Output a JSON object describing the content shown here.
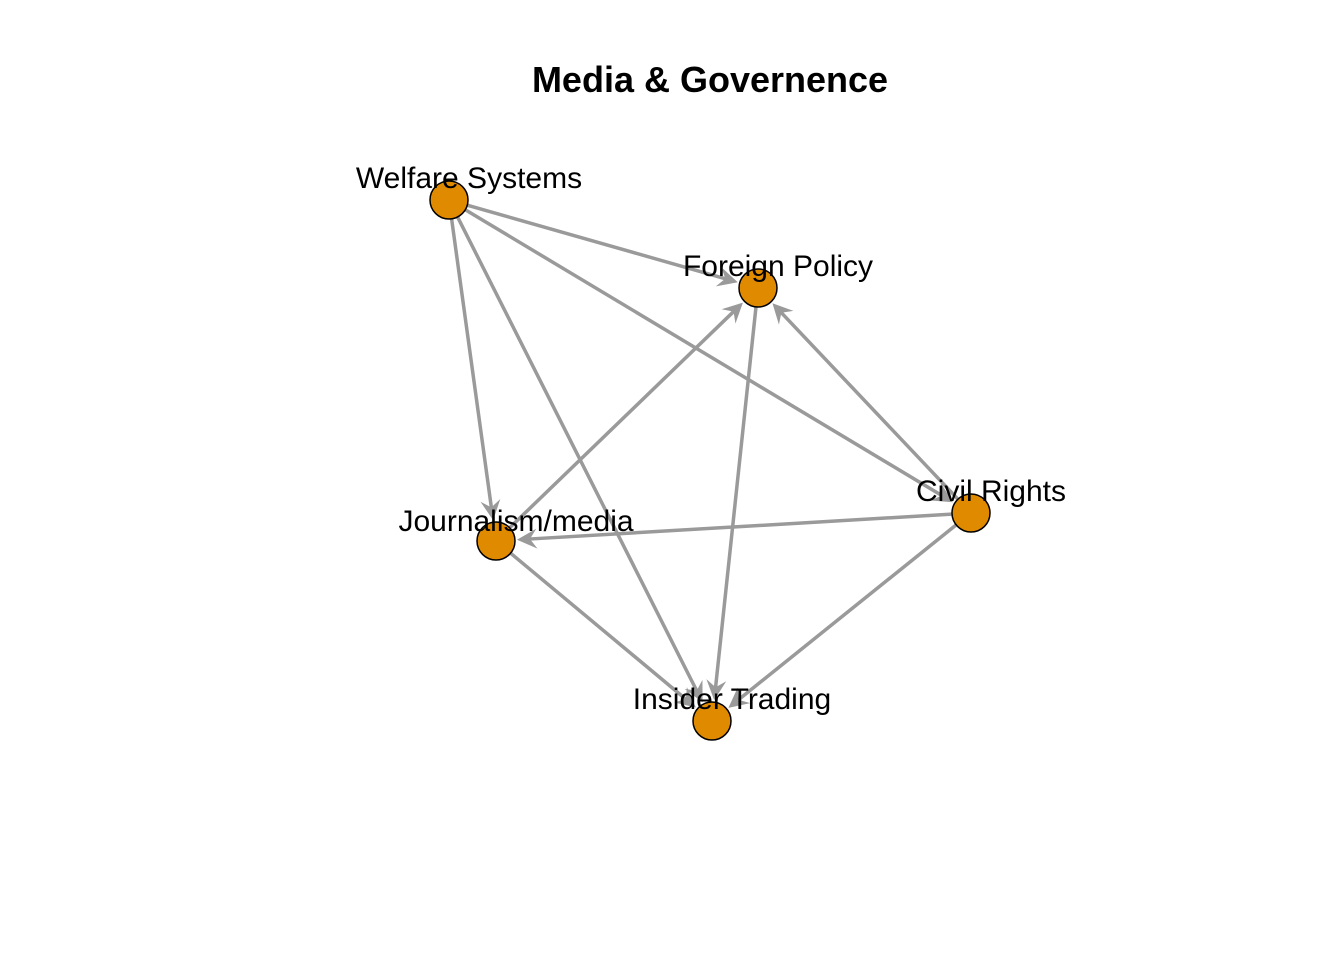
{
  "title": "Media & Governence",
  "colors": {
    "node_fill": "#E08A00",
    "node_stroke": "#000000",
    "edge": "#9A9A9A"
  },
  "nodes": [
    {
      "id": "welfare",
      "label": "Welfare Systems"
    },
    {
      "id": "foreign",
      "label": "Foreign Policy"
    },
    {
      "id": "civil",
      "label": "Civil Rights"
    },
    {
      "id": "journalism",
      "label": "Journalism/media"
    },
    {
      "id": "insider",
      "label": "Insider Trading"
    }
  ],
  "edges": [
    {
      "from": "welfare",
      "to": "foreign"
    },
    {
      "from": "welfare",
      "to": "journalism"
    },
    {
      "from": "welfare",
      "to": "insider"
    },
    {
      "from": "welfare",
      "to": "civil"
    },
    {
      "from": "journalism",
      "to": "foreign"
    },
    {
      "from": "civil",
      "to": "foreign"
    },
    {
      "from": "foreign",
      "to": "insider"
    },
    {
      "from": "civil",
      "to": "journalism"
    },
    {
      "from": "journalism",
      "to": "insider"
    },
    {
      "from": "civil",
      "to": "insider"
    }
  ]
}
